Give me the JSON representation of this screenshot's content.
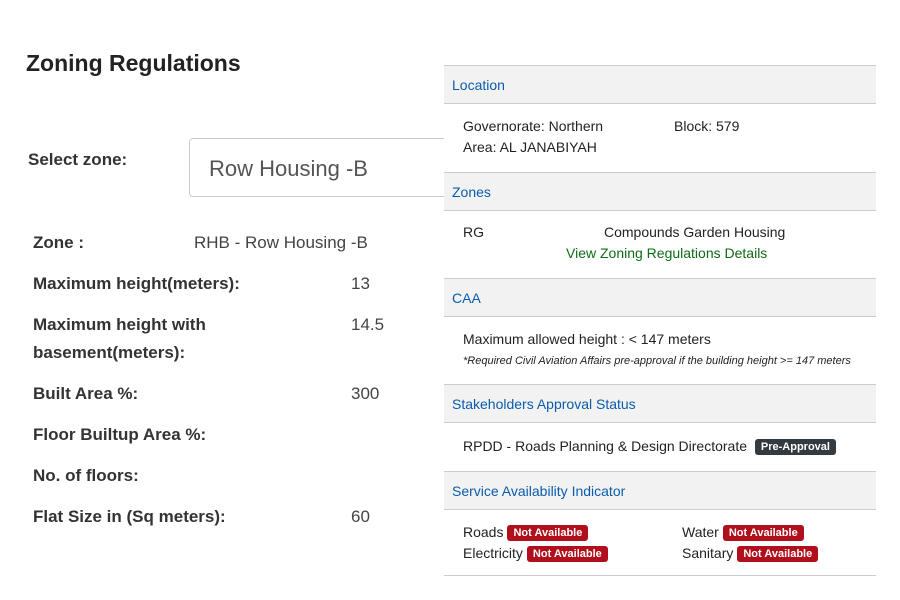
{
  "title": "Zoning Regulations",
  "select": {
    "label": "Select zone:",
    "value": "Row Housing -B"
  },
  "details": [
    {
      "label": "Zone :",
      "value": "RHB - Row Housing -B"
    },
    {
      "label": "Maximum height(meters):",
      "value": 13
    },
    {
      "label": "Maximum height with basement(meters):",
      "value": 14.5
    },
    {
      "label": "Built Area %:",
      "value": 300
    },
    {
      "label": "Floor Builtup Area %:"
    },
    {
      "label": "No. of floors:"
    },
    {
      "label": "Flat Size in (Sq meters):",
      "value": 60
    }
  ],
  "location": {
    "heading": "Location",
    "governorate": "Governorate: Northern",
    "block": "Block: 579",
    "area": "Area: AL JANABIYAH"
  },
  "zones": {
    "heading": "Zones",
    "code": "RG",
    "name": "Compounds Garden Housing",
    "link": "View Zoning Regulations Details"
  },
  "caa": {
    "heading": "CAA",
    "max_height": "Maximum allowed height : < 147 meters",
    "note": "*Required Civil Aviation Affairs pre-approval if the building height >= 147 meters"
  },
  "stakeholders": {
    "heading": "Stakeholders Approval Status",
    "items": [
      {
        "name": "RPDD - Roads Planning & Design Directorate",
        "status": "Pre-Approval"
      }
    ]
  },
  "services": {
    "heading": "Service Availability Indicator",
    "items": [
      {
        "name": "Roads",
        "status": "Not Available"
      },
      {
        "name": "Water",
        "status": "Not Available"
      },
      {
        "name": "Electricity",
        "status": "Not Available"
      },
      {
        "name": "Sanitary",
        "status": "Not Available"
      }
    ]
  }
}
